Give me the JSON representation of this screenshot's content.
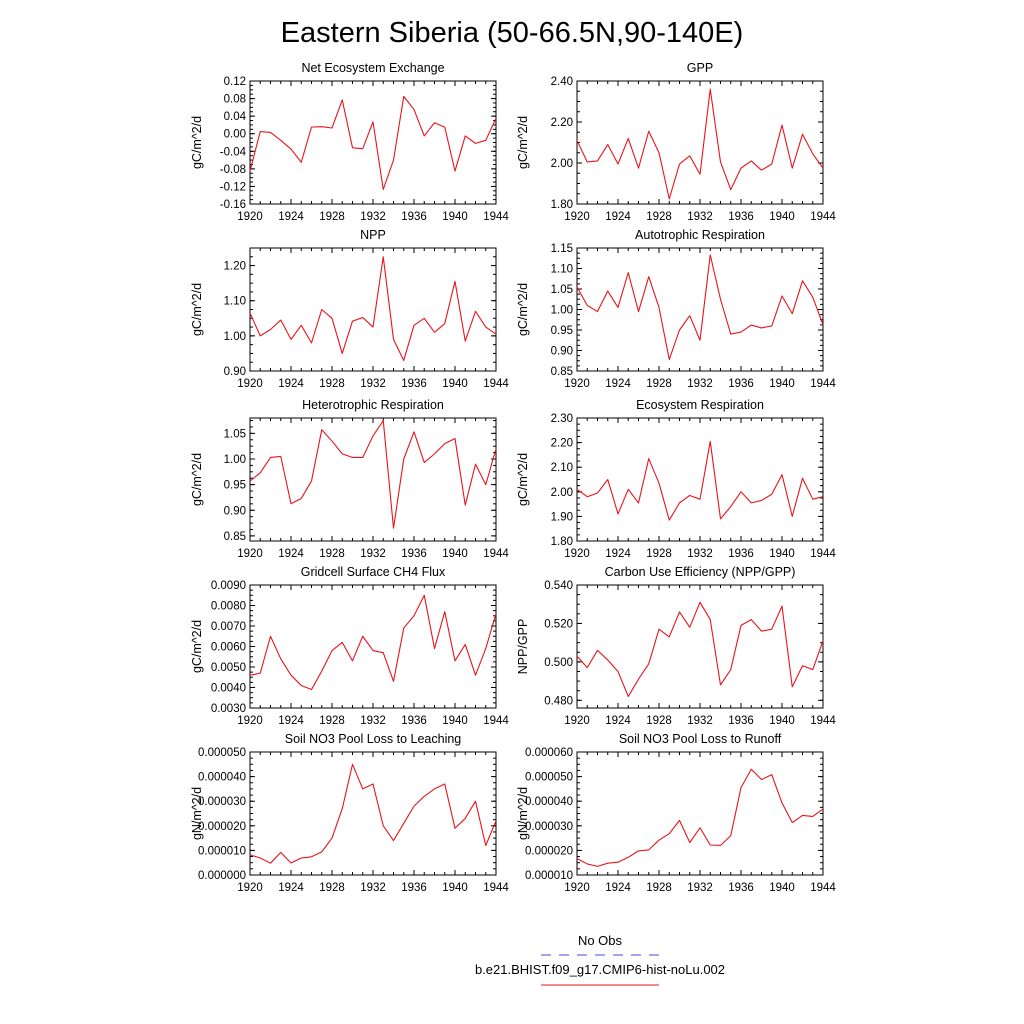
{
  "figure": {
    "title": "Eastern Siberia (50-66.5N,90-140E)",
    "line_color": "#e8141c",
    "obs_color": "#4a4ad6"
  },
  "legend": [
    {
      "label": "No Obs",
      "style": "dashed",
      "color": "#4a4ad6"
    },
    {
      "label": "b.e21.BHIST.f09_g17.CMIP6-hist-noLu.002",
      "style": "solid",
      "color": "#e8141c"
    }
  ],
  "chart_data": [
    {
      "type": "line",
      "title": "Net Ecosystem Exchange",
      "ylabel": "gC/m^2/d",
      "xlim": [
        1920,
        1944
      ],
      "ylim": [
        -0.16,
        0.12
      ],
      "yticks": [
        "-0.16",
        "-0.12",
        "-0.08",
        "-0.04",
        "0.00",
        "0.04",
        "0.08",
        "0.12"
      ],
      "ytick_values": [
        -0.16,
        -0.12,
        -0.08,
        -0.04,
        0.0,
        0.04,
        0.08,
        0.12
      ],
      "xticks": [
        "1920",
        "1924",
        "1928",
        "1932",
        "1936",
        "1940",
        "1944"
      ],
      "x": [
        1920,
        1921,
        1922,
        1923,
        1924,
        1925,
        1926,
        1927,
        1928,
        1929,
        1930,
        1931,
        1932,
        1933,
        1934,
        1935,
        1936,
        1937,
        1938,
        1939,
        1940,
        1941,
        1942,
        1943,
        1944
      ],
      "values": [
        -0.085,
        0.005,
        0.003,
        -0.015,
        -0.035,
        -0.065,
        0.015,
        0.016,
        0.013,
        0.077,
        -0.032,
        -0.034,
        0.027,
        -0.127,
        -0.06,
        0.085,
        0.055,
        -0.005,
        0.025,
        0.015,
        -0.085,
        -0.005,
        -0.022,
        -0.015,
        0.035
      ]
    },
    {
      "type": "line",
      "title": "GPP",
      "ylabel": "gC/m^2/d",
      "xlim": [
        1920,
        1944
      ],
      "ylim": [
        1.8,
        2.4
      ],
      "yticks": [
        "1.80",
        "2.00",
        "2.20",
        "2.40"
      ],
      "ytick_values": [
        1.8,
        2.0,
        2.2,
        2.4
      ],
      "xticks": [
        "1920",
        "1924",
        "1928",
        "1932",
        "1936",
        "1940",
        "1944"
      ],
      "x": [
        1920,
        1921,
        1922,
        1923,
        1924,
        1925,
        1926,
        1927,
        1928,
        1929,
        1930,
        1931,
        1932,
        1933,
        1934,
        1935,
        1936,
        1937,
        1938,
        1939,
        1940,
        1941,
        1942,
        1943,
        1944
      ],
      "values": [
        2.11,
        2.005,
        2.01,
        2.09,
        1.995,
        2.12,
        1.975,
        2.155,
        2.05,
        1.825,
        1.995,
        2.035,
        1.945,
        2.36,
        2.005,
        1.87,
        1.975,
        2.01,
        1.965,
        1.995,
        2.185,
        1.975,
        2.14,
        2.045,
        1.975
      ]
    },
    {
      "type": "line",
      "title": "NPP",
      "ylabel": "gC/m^2/d",
      "xlim": [
        1920,
        1944
      ],
      "ylim": [
        0.9,
        1.25
      ],
      "yticks": [
        "0.90",
        "1.00",
        "1.10",
        "1.20"
      ],
      "ytick_values": [
        0.9,
        1.0,
        1.1,
        1.2
      ],
      "xticks": [
        "1920",
        "1924",
        "1928",
        "1932",
        "1936",
        "1940",
        "1944"
      ],
      "x": [
        1920,
        1921,
        1922,
        1923,
        1924,
        1925,
        1926,
        1927,
        1928,
        1929,
        1930,
        1931,
        1932,
        1933,
        1934,
        1935,
        1936,
        1937,
        1938,
        1939,
        1940,
        1941,
        1942,
        1943,
        1944
      ],
      "values": [
        1.065,
        1.0,
        1.018,
        1.045,
        0.99,
        1.03,
        0.98,
        1.075,
        1.05,
        0.95,
        1.042,
        1.052,
        1.025,
        1.225,
        0.99,
        0.93,
        1.03,
        1.05,
        1.01,
        1.035,
        1.155,
        0.985,
        1.07,
        1.025,
        1.005
      ]
    },
    {
      "type": "line",
      "title": "Autotrophic Respiration",
      "ylabel": "gC/m^2/d",
      "xlim": [
        1920,
        1944
      ],
      "ylim": [
        0.85,
        1.15
      ],
      "yticks": [
        "0.85",
        "0.90",
        "0.95",
        "1.00",
        "1.05",
        "1.10",
        "1.15"
      ],
      "ytick_values": [
        0.85,
        0.9,
        0.95,
        1.0,
        1.05,
        1.1,
        1.15
      ],
      "xticks": [
        "1920",
        "1924",
        "1928",
        "1932",
        "1936",
        "1940",
        "1944"
      ],
      "x": [
        1920,
        1921,
        1922,
        1923,
        1924,
        1925,
        1926,
        1927,
        1928,
        1929,
        1930,
        1931,
        1932,
        1933,
        1934,
        1935,
        1936,
        1937,
        1938,
        1939,
        1940,
        1941,
        1942,
        1943,
        1944
      ],
      "values": [
        1.055,
        1.01,
        0.995,
        1.045,
        1.005,
        1.09,
        0.995,
        1.08,
        1.005,
        0.878,
        0.95,
        0.985,
        0.925,
        1.133,
        1.025,
        0.94,
        0.945,
        0.962,
        0.955,
        0.96,
        1.033,
        0.99,
        1.07,
        1.03,
        0.963
      ]
    },
    {
      "type": "line",
      "title": "Heterotrophic Respiration",
      "ylabel": "gC/m^2/d",
      "xlim": [
        1920,
        1944
      ],
      "ylim": [
        0.84,
        1.08
      ],
      "yticks": [
        "0.85",
        "0.90",
        "0.95",
        "1.00",
        "1.05"
      ],
      "ytick_values": [
        0.85,
        0.9,
        0.95,
        1.0,
        1.05
      ],
      "xticks": [
        "1920",
        "1924",
        "1928",
        "1932",
        "1936",
        "1940",
        "1944"
      ],
      "x": [
        1920,
        1921,
        1922,
        1923,
        1924,
        1925,
        1926,
        1927,
        1928,
        1929,
        1930,
        1931,
        1932,
        1933,
        1934,
        1935,
        1936,
        1937,
        1938,
        1939,
        1940,
        1941,
        1942,
        1943,
        1944
      ],
      "values": [
        0.957,
        0.973,
        1.003,
        1.005,
        0.913,
        0.923,
        0.957,
        1.057,
        1.035,
        1.01,
        1.003,
        1.003,
        1.045,
        1.075,
        0.865,
        1.0,
        1.053,
        0.993,
        1.01,
        1.03,
        1.04,
        0.91,
        0.99,
        0.95,
        1.02
      ]
    },
    {
      "type": "line",
      "title": "Ecosystem Respiration",
      "ylabel": "gC/m^2/d",
      "xlim": [
        1920,
        1944
      ],
      "ylim": [
        1.8,
        2.3
      ],
      "yticks": [
        "1.80",
        "1.90",
        "2.00",
        "2.10",
        "2.20",
        "2.30"
      ],
      "ytick_values": [
        1.8,
        1.9,
        2.0,
        2.1,
        2.2,
        2.3
      ],
      "xticks": [
        "1920",
        "1924",
        "1928",
        "1932",
        "1936",
        "1940",
        "1944"
      ],
      "x": [
        1920,
        1921,
        1922,
        1923,
        1924,
        1925,
        1926,
        1927,
        1928,
        1929,
        1930,
        1931,
        1932,
        1933,
        1934,
        1935,
        1936,
        1937,
        1938,
        1939,
        1940,
        1941,
        1942,
        1943,
        1944
      ],
      "values": [
        2.01,
        1.98,
        1.995,
        2.05,
        1.91,
        2.01,
        1.955,
        2.135,
        2.035,
        1.885,
        1.955,
        1.985,
        1.97,
        2.205,
        1.89,
        1.94,
        2.0,
        1.955,
        1.965,
        1.99,
        2.07,
        1.9,
        2.055,
        1.97,
        1.98
      ]
    },
    {
      "type": "line",
      "title": "Gridcell Surface CH4 Flux",
      "ylabel": "gC/m^2/d",
      "xlim": [
        1920,
        1944
      ],
      "ylim": [
        0.003,
        0.009
      ],
      "yticks": [
        "0.0030",
        "0.0040",
        "0.0050",
        "0.0060",
        "0.0070",
        "0.0080",
        "0.0090"
      ],
      "ytick_values": [
        0.003,
        0.004,
        0.005,
        0.006,
        0.007,
        0.008,
        0.009
      ],
      "xticks": [
        "1920",
        "1924",
        "1928",
        "1932",
        "1936",
        "1940",
        "1944"
      ],
      "x": [
        1920,
        1921,
        1922,
        1923,
        1924,
        1925,
        1926,
        1927,
        1928,
        1929,
        1930,
        1931,
        1932,
        1933,
        1934,
        1935,
        1936,
        1937,
        1938,
        1939,
        1940,
        1941,
        1942,
        1943,
        1944
      ],
      "values": [
        0.0046,
        0.0047,
        0.0065,
        0.0054,
        0.0046,
        0.0041,
        0.0039,
        0.0048,
        0.0058,
        0.0062,
        0.0053,
        0.0065,
        0.0058,
        0.0057,
        0.0043,
        0.0069,
        0.0075,
        0.0085,
        0.0059,
        0.0077,
        0.0053,
        0.0061,
        0.0046,
        0.0059,
        0.0076
      ]
    },
    {
      "type": "line",
      "title": "Carbon Use Efficiency (NPP/GPP)",
      "ylabel": "NPP/GPP",
      "xlim": [
        1920,
        1944
      ],
      "ylim": [
        0.476,
        0.54
      ],
      "yticks": [
        "0.480",
        "0.500",
        "0.520",
        "0.540"
      ],
      "ytick_values": [
        0.48,
        0.5,
        0.52,
        0.54
      ],
      "xticks": [
        "1920",
        "1924",
        "1928",
        "1932",
        "1936",
        "1940",
        "1944"
      ],
      "x": [
        1920,
        1921,
        1922,
        1923,
        1924,
        1925,
        1926,
        1927,
        1928,
        1929,
        1930,
        1931,
        1932,
        1933,
        1934,
        1935,
        1936,
        1937,
        1938,
        1939,
        1940,
        1941,
        1942,
        1943,
        1944
      ],
      "values": [
        0.503,
        0.497,
        0.506,
        0.501,
        0.495,
        0.482,
        0.491,
        0.499,
        0.517,
        0.513,
        0.526,
        0.518,
        0.531,
        0.522,
        0.488,
        0.496,
        0.519,
        0.522,
        0.516,
        0.517,
        0.529,
        0.487,
        0.498,
        0.496,
        0.511
      ]
    },
    {
      "type": "line",
      "title": "Soil NO3 Pool Loss to Leaching",
      "ylabel": "gN/m^2/d",
      "xlim": [
        1920,
        1944
      ],
      "ylim": [
        0.0,
        5e-05
      ],
      "yticks": [
        "0.000000",
        "0.000010",
        "0.000020",
        "0.000030",
        "0.000040",
        "0.000050"
      ],
      "ytick_values": [
        0.0,
        1e-05,
        2e-05,
        3e-05,
        4e-05,
        5e-05
      ],
      "xticks": [
        "1920",
        "1924",
        "1928",
        "1932",
        "1936",
        "1940",
        "1944"
      ],
      "x": [
        1920,
        1921,
        1922,
        1923,
        1924,
        1925,
        1926,
        1927,
        1928,
        1929,
        1930,
        1931,
        1932,
        1933,
        1934,
        1935,
        1936,
        1937,
        1938,
        1939,
        1940,
        1941,
        1942,
        1943,
        1944
      ],
      "values": [
        8.2e-06,
        6.9e-06,
        4.8e-06,
        9.2e-06,
        4.9e-06,
        6.9e-06,
        7.4e-06,
        9.4e-06,
        1.5e-05,
        2.7e-05,
        4.5e-05,
        3.5e-05,
        3.7e-05,
        2e-05,
        1.4e-05,
        2.1e-05,
        2.8e-05,
        3.2e-05,
        3.5e-05,
        3.7e-05,
        1.9e-05,
        2.3e-05,
        3e-05,
        1.2e-05,
        2.2e-05
      ]
    },
    {
      "type": "line",
      "title": "Soil NO3 Pool Loss to Runoff",
      "ylabel": "gN/m^2/d",
      "xlim": [
        1920,
        1944
      ],
      "ylim": [
        1e-05,
        6e-05
      ],
      "yticks": [
        "0.000010",
        "0.000020",
        "0.000030",
        "0.000040",
        "0.000050",
        "0.000060"
      ],
      "ytick_values": [
        1e-05,
        2e-05,
        3e-05,
        4e-05,
        5e-05,
        6e-05
      ],
      "xticks": [
        "1920",
        "1924",
        "1928",
        "1932",
        "1936",
        "1940",
        "1944"
      ],
      "x": [
        1920,
        1921,
        1922,
        1923,
        1924,
        1925,
        1926,
        1927,
        1928,
        1929,
        1930,
        1931,
        1932,
        1933,
        1934,
        1935,
        1936,
        1937,
        1938,
        1939,
        1940,
        1941,
        1942,
        1943,
        1944
      ],
      "values": [
        1.67e-05,
        1.45e-05,
        1.35e-05,
        1.48e-05,
        1.52e-05,
        1.72e-05,
        1.98e-05,
        2.02e-05,
        2.42e-05,
        2.68e-05,
        3.22e-05,
        2.32e-05,
        2.92e-05,
        2.22e-05,
        2.2e-05,
        2.6e-05,
        4.55e-05,
        5.3e-05,
        4.88e-05,
        5.08e-05,
        3.93e-05,
        3.13e-05,
        3.42e-05,
        3.38e-05,
        3.68e-05
      ]
    }
  ]
}
